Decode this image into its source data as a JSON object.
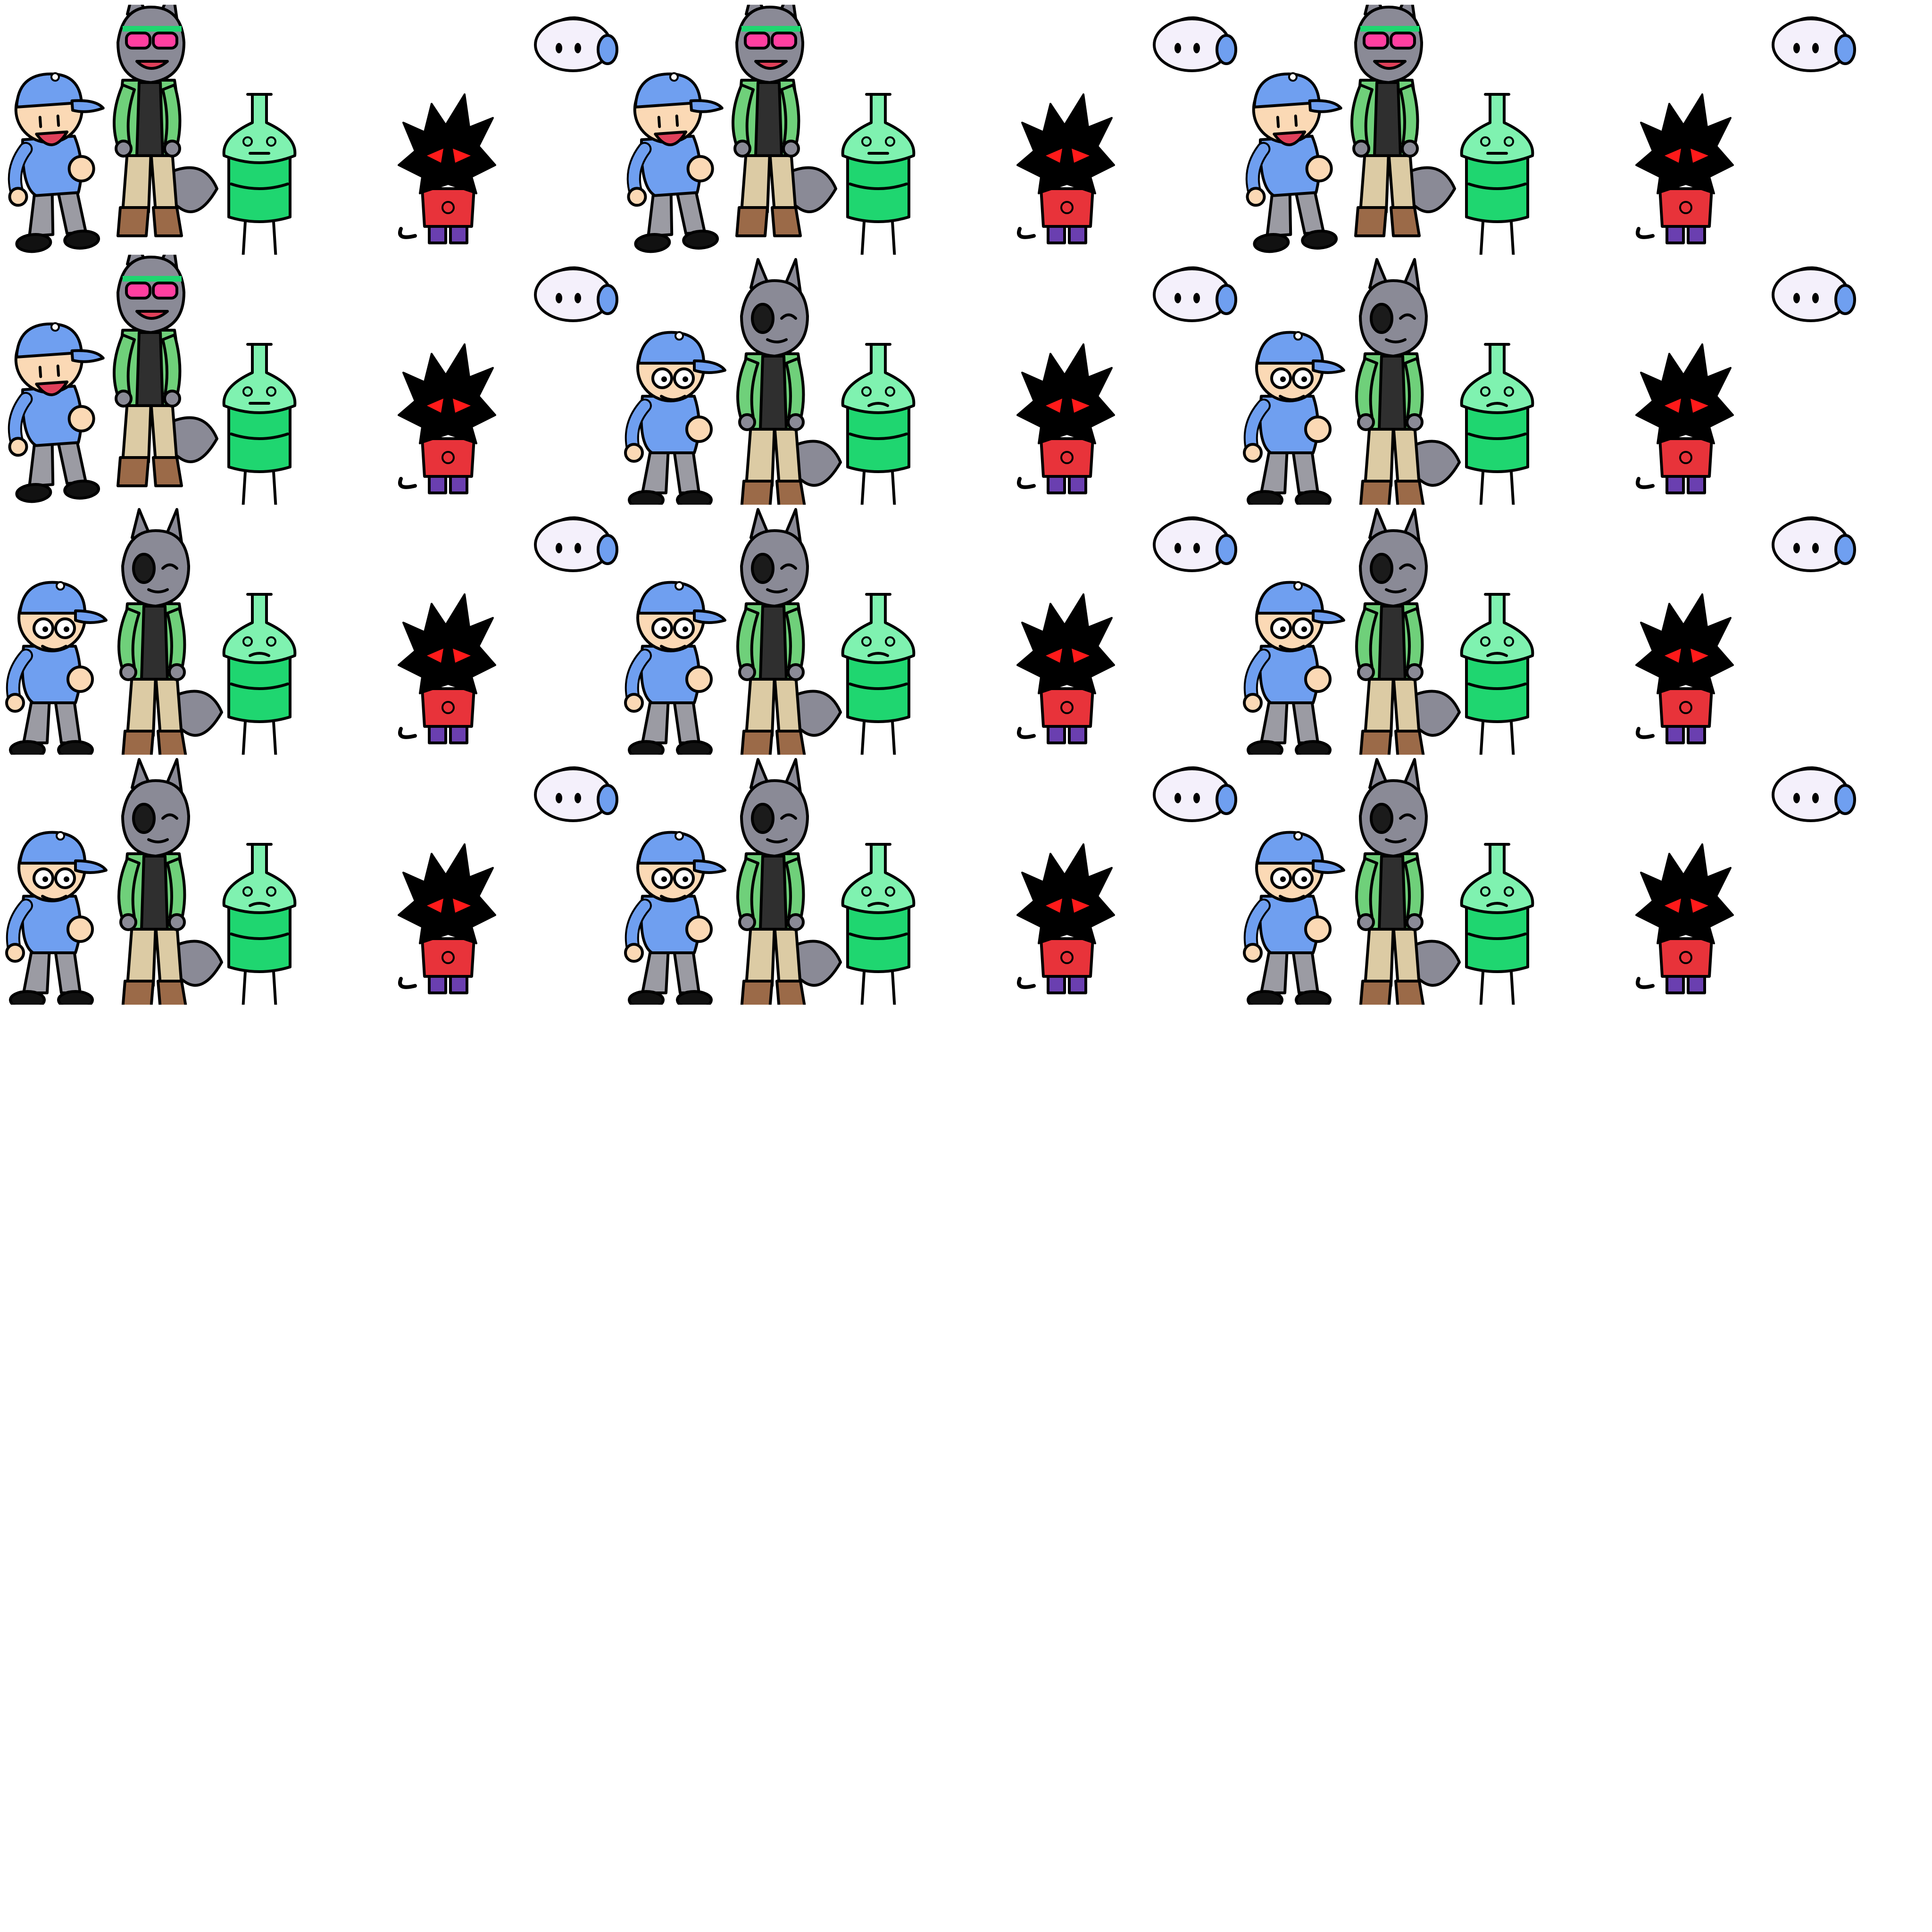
{
  "sheet": {
    "background": "#ffffff",
    "columns": 3,
    "rows": 4,
    "frames": [
      {
        "pose": "cheer"
      },
      {
        "pose": "cheer"
      },
      {
        "pose": "cheer"
      },
      {
        "pose": "cheer"
      },
      {
        "pose": "idle"
      },
      {
        "pose": "idle"
      },
      {
        "pose": "idle"
      },
      {
        "pose": "idle"
      },
      {
        "pose": "idle"
      },
      {
        "pose": "idle"
      },
      {
        "pose": "idle"
      },
      {
        "pose": "idle"
      }
    ]
  },
  "characters": [
    "cap-boy",
    "gray-wolf",
    "flask-creature",
    "black-cat",
    "headphone-blob"
  ],
  "colors": {
    "outline": "#000000",
    "cap": "#6f9ff0",
    "cap_brim": "#ffffff",
    "skin": "#fbd9b5",
    "shirt": "#6f9ff0",
    "pants": "#9b9ba3",
    "fur": "#8a8a96",
    "jacket": "#6fd07a",
    "vest": "#2f2f2f",
    "khaki": "#dccba4",
    "boots": "#9b6a48",
    "goggles": "#ff3fa0",
    "flask": "#1fd670",
    "flask_light": "#7ff2b0",
    "cat_body": "#000000",
    "cat_eye": "#ff1a1a",
    "cat_shirt": "#e8333a",
    "cat_shorts": "#6a3fb0",
    "blob": "#f4f0fb",
    "headphone": "#6f9ff0"
  }
}
